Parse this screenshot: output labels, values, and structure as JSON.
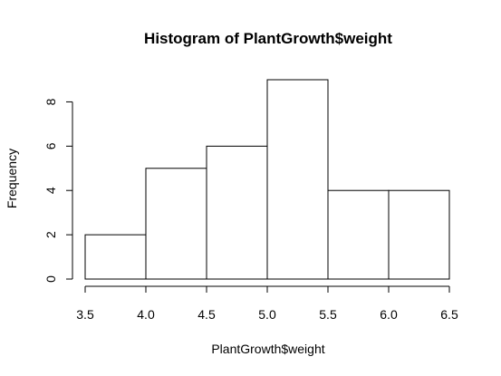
{
  "chart_data": {
    "type": "bar",
    "title": "Histogram of PlantGrowth$weight",
    "xlabel": "PlantGrowth$weight",
    "ylabel": "Frequency",
    "bins": [
      {
        "x0": 3.5,
        "x1": 4.0,
        "count": 2
      },
      {
        "x0": 4.0,
        "x1": 4.5,
        "count": 5
      },
      {
        "x0": 4.5,
        "x1": 5.0,
        "count": 6
      },
      {
        "x0": 5.0,
        "x1": 5.5,
        "count": 9
      },
      {
        "x0": 5.5,
        "x1": 6.0,
        "count": 4
      },
      {
        "x0": 6.0,
        "x1": 6.5,
        "count": 4
      }
    ],
    "xlim": [
      3.5,
      6.5
    ],
    "ylim": [
      0,
      9
    ],
    "x_ticks": [
      3.5,
      4.0,
      4.5,
      5.0,
      5.5,
      6.0,
      6.5
    ],
    "x_tick_labels": [
      "3.5",
      "4.0",
      "4.5",
      "5.0",
      "5.5",
      "6.0",
      "6.5"
    ],
    "y_ticks": [
      0,
      2,
      4,
      6,
      8
    ],
    "y_tick_labels": [
      "0",
      "2",
      "4",
      "6",
      "8"
    ],
    "grid": false,
    "legend": "none",
    "colors": {
      "bar_fill": "#ffffff",
      "bar_stroke": "#000000"
    }
  }
}
